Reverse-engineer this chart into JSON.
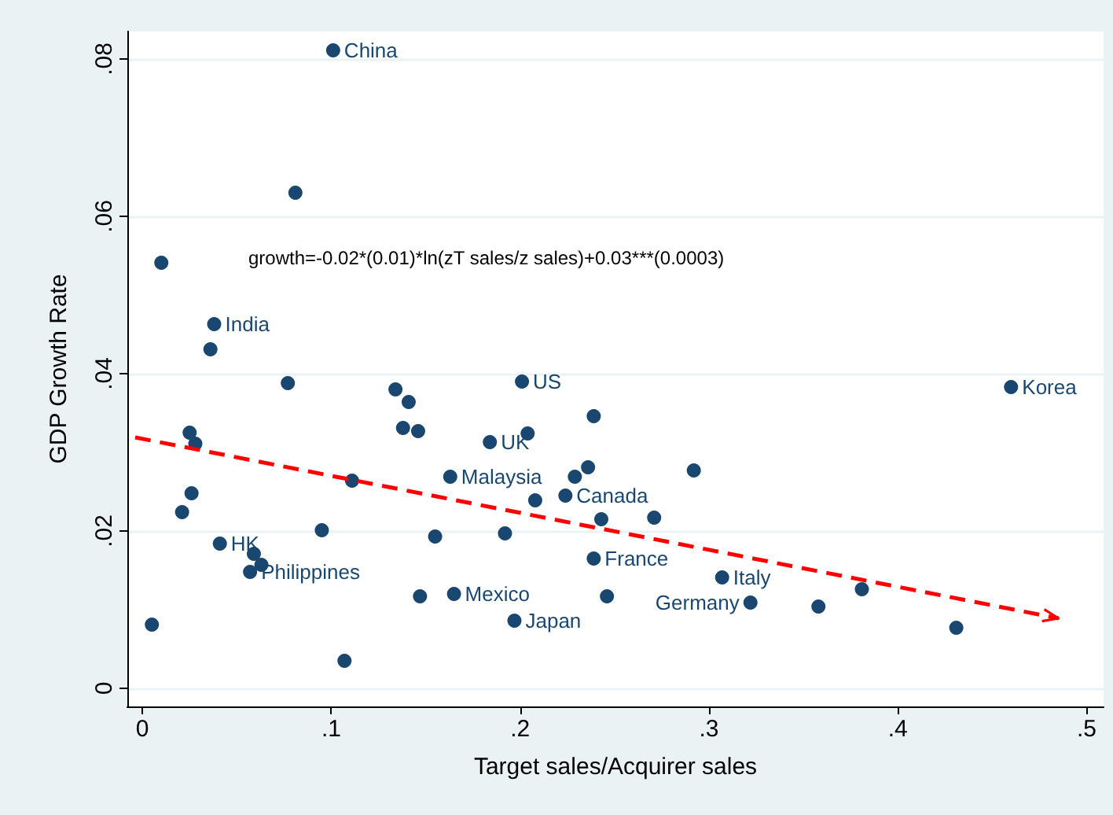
{
  "chart_data": {
    "type": "scatter",
    "xlabel": "Target sales/Acquirer sales",
    "ylabel": "GDP Growth Rate",
    "series": [
      {
        "color": "#1a476f",
        "marker": "circle",
        "x": [
          0.101,
          0.081,
          0.01,
          0.038,
          0.036,
          0.077,
          0.134,
          0.141,
          0.201,
          0.025,
          0.028,
          0.138,
          0.146,
          0.184,
          0.204,
          0.239,
          0.163,
          0.111,
          0.229,
          0.236,
          0.224,
          0.208,
          0.026,
          0.021,
          0.243,
          0.095,
          0.155,
          0.192,
          0.041,
          0.059,
          0.063,
          0.057,
          0.239,
          0.147,
          0.165,
          0.197,
          0.005,
          0.107,
          0.246,
          0.46,
          0.292,
          0.271,
          0.307,
          0.322,
          0.358,
          0.381,
          0.431
        ],
        "values": [
          0.0811,
          0.063,
          0.0541,
          0.0463,
          0.0431,
          0.0388,
          0.038,
          0.0364,
          0.039,
          0.0325,
          0.0311,
          0.0331,
          0.0327,
          0.0313,
          0.0324,
          0.0346,
          0.0269,
          0.0264,
          0.0269,
          0.0281,
          0.0245,
          0.0239,
          0.0248,
          0.0224,
          0.0215,
          0.0201,
          0.0193,
          0.0197,
          0.0184,
          0.0171,
          0.0157,
          0.0148,
          0.0165,
          0.0117,
          0.012,
          0.0086,
          0.0081,
          0.0035,
          0.0117,
          0.0383,
          0.0277,
          0.0217,
          0.0141,
          0.0109,
          0.0104,
          0.0126,
          0.0077
        ]
      },
      {
        "type": "line",
        "color": "#ff0000",
        "line_style": "dashed",
        "marker": "none",
        "x": [
          -0.004,
          0.485
        ],
        "values": [
          0.0319,
          0.0089
        ]
      }
    ],
    "xlim": [
      -0.008,
      0.509
    ],
    "ylim": [
      -0.0023,
      0.0835
    ],
    "xticks": [
      0,
      {
        "value": 0.1,
        "label": ".1"
      },
      {
        "value": 0.2,
        "label": ".2"
      },
      {
        "value": 0.3,
        "label": ".3"
      },
      {
        "value": 0.4,
        "label": ".4"
      },
      {
        "value": 0.5,
        "label": ".5"
      }
    ],
    "yticks": [
      0,
      {
        "value": 0.02,
        "label": ".02"
      },
      {
        "value": 0.04,
        "label": ".04"
      },
      {
        "value": 0.06,
        "label": ".06"
      },
      {
        "value": 0.08,
        "label": ".08"
      }
    ],
    "grid": "y",
    "annotations": [
      "growth=-0.02*(0.01)*ln(zT sales/z sales)+0.03***(0.0003)",
      {
        "text": "China",
        "x": 0.101,
        "y": 0.0811
      },
      {
        "text": "India",
        "x": 0.038,
        "y": 0.0463
      },
      {
        "text": "US",
        "x": 0.201,
        "y": 0.039
      },
      {
        "text": "UK",
        "x": 0.184,
        "y": 0.0313
      },
      {
        "text": "Malaysia",
        "x": 0.163,
        "y": 0.0269
      },
      {
        "text": "Canada",
        "x": 0.224,
        "y": 0.0245
      },
      {
        "text": "HK",
        "x": 0.041,
        "y": 0.0184
      },
      {
        "text": "Philippines",
        "x": 0.057,
        "y": 0.0148
      },
      {
        "text": "France",
        "x": 0.239,
        "y": 0.0165
      },
      {
        "text": "Mexico",
        "x": 0.165,
        "y": 0.012
      },
      {
        "text": "Japan",
        "x": 0.197,
        "y": 0.0086
      },
      {
        "text": "Korea",
        "x": 0.46,
        "y": 0.0383
      },
      {
        "text": "Italy",
        "x": 0.307,
        "y": 0.0141
      },
      {
        "text": "Germany",
        "x": 0.322,
        "y": 0.0109
      }
    ]
  }
}
